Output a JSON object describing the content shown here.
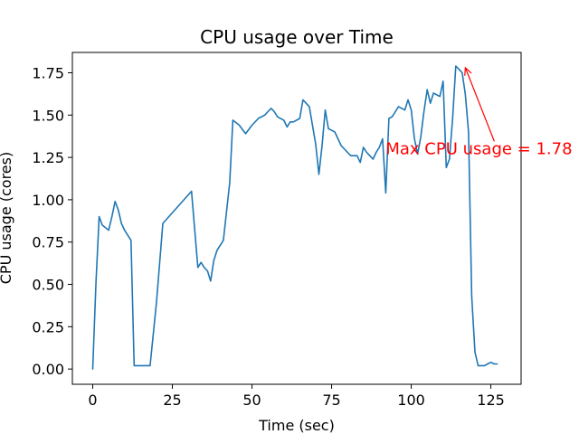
{
  "chart_data": {
    "type": "line",
    "title": "CPU usage over Time",
    "xlabel": "Time (sec)",
    "ylabel": "CPU usage (cores)",
    "xlim": [
      -6.4,
      134.5
    ],
    "ylim": [
      -0.09,
      1.87
    ],
    "xticks": [
      0,
      25,
      50,
      75,
      100,
      125
    ],
    "xtick_labels": [
      "0",
      "25",
      "50",
      "75",
      "100",
      "125"
    ],
    "yticks": [
      0.0,
      0.25,
      0.5,
      0.75,
      1.0,
      1.25,
      1.5,
      1.75
    ],
    "ytick_labels": [
      "0.00",
      "0.25",
      "0.50",
      "0.75",
      "1.00",
      "1.25",
      "1.50",
      "1.75"
    ],
    "grid": false,
    "series": [
      {
        "color": "#1f77b4",
        "x": [
          0,
          1,
          2,
          3,
          5,
          6,
          7,
          8,
          9,
          10,
          12,
          13,
          14,
          15,
          16,
          18,
          20,
          22,
          31,
          33,
          34,
          35,
          36,
          37,
          38,
          39,
          41,
          43,
          44,
          46,
          48,
          50,
          52,
          54,
          55,
          56,
          57,
          58,
          60,
          61,
          62,
          63,
          65,
          66,
          68,
          70,
          71,
          72,
          73,
          74,
          75,
          76,
          77,
          78,
          80,
          81,
          82,
          83,
          84,
          85,
          86,
          87,
          88,
          89,
          90,
          91,
          92,
          93,
          94,
          95,
          96,
          97,
          98,
          99,
          100,
          101,
          102,
          103,
          104,
          105,
          106,
          107,
          108,
          109,
          110,
          111,
          112,
          113,
          114,
          115,
          116,
          117,
          118,
          119,
          120,
          121,
          122,
          123,
          124,
          125,
          126,
          127
        ],
        "values": [
          0.0,
          0.5,
          0.9,
          0.85,
          0.82,
          0.9,
          0.99,
          0.94,
          0.86,
          0.82,
          0.76,
          0.02,
          0.02,
          0.02,
          0.02,
          0.02,
          0.39,
          0.86,
          1.05,
          0.6,
          0.63,
          0.6,
          0.58,
          0.52,
          0.64,
          0.7,
          0.76,
          1.1,
          1.47,
          1.44,
          1.39,
          1.44,
          1.48,
          1.5,
          1.52,
          1.54,
          1.52,
          1.49,
          1.47,
          1.43,
          1.46,
          1.46,
          1.48,
          1.59,
          1.55,
          1.33,
          1.15,
          1.32,
          1.53,
          1.42,
          1.41,
          1.4,
          1.36,
          1.32,
          1.28,
          1.26,
          1.26,
          1.26,
          1.22,
          1.31,
          1.28,
          1.26,
          1.24,
          1.28,
          1.31,
          1.36,
          1.04,
          1.48,
          1.49,
          1.52,
          1.55,
          1.54,
          1.53,
          1.59,
          1.53,
          1.36,
          1.27,
          1.37,
          1.52,
          1.65,
          1.57,
          1.63,
          1.62,
          1.61,
          1.7,
          1.19,
          1.24,
          1.48,
          1.79,
          1.77,
          1.75,
          1.62,
          1.4,
          0.43,
          0.1,
          0.02,
          0.02,
          0.02,
          0.03,
          0.04,
          0.03,
          0.03
        ]
      }
    ],
    "annotations": [
      {
        "text": "Max CPU usage = 1.78",
        "color": "#ff0000",
        "xy": [
          117,
          1.78
        ],
        "xytext": [
          92,
          1.27
        ]
      }
    ]
  }
}
